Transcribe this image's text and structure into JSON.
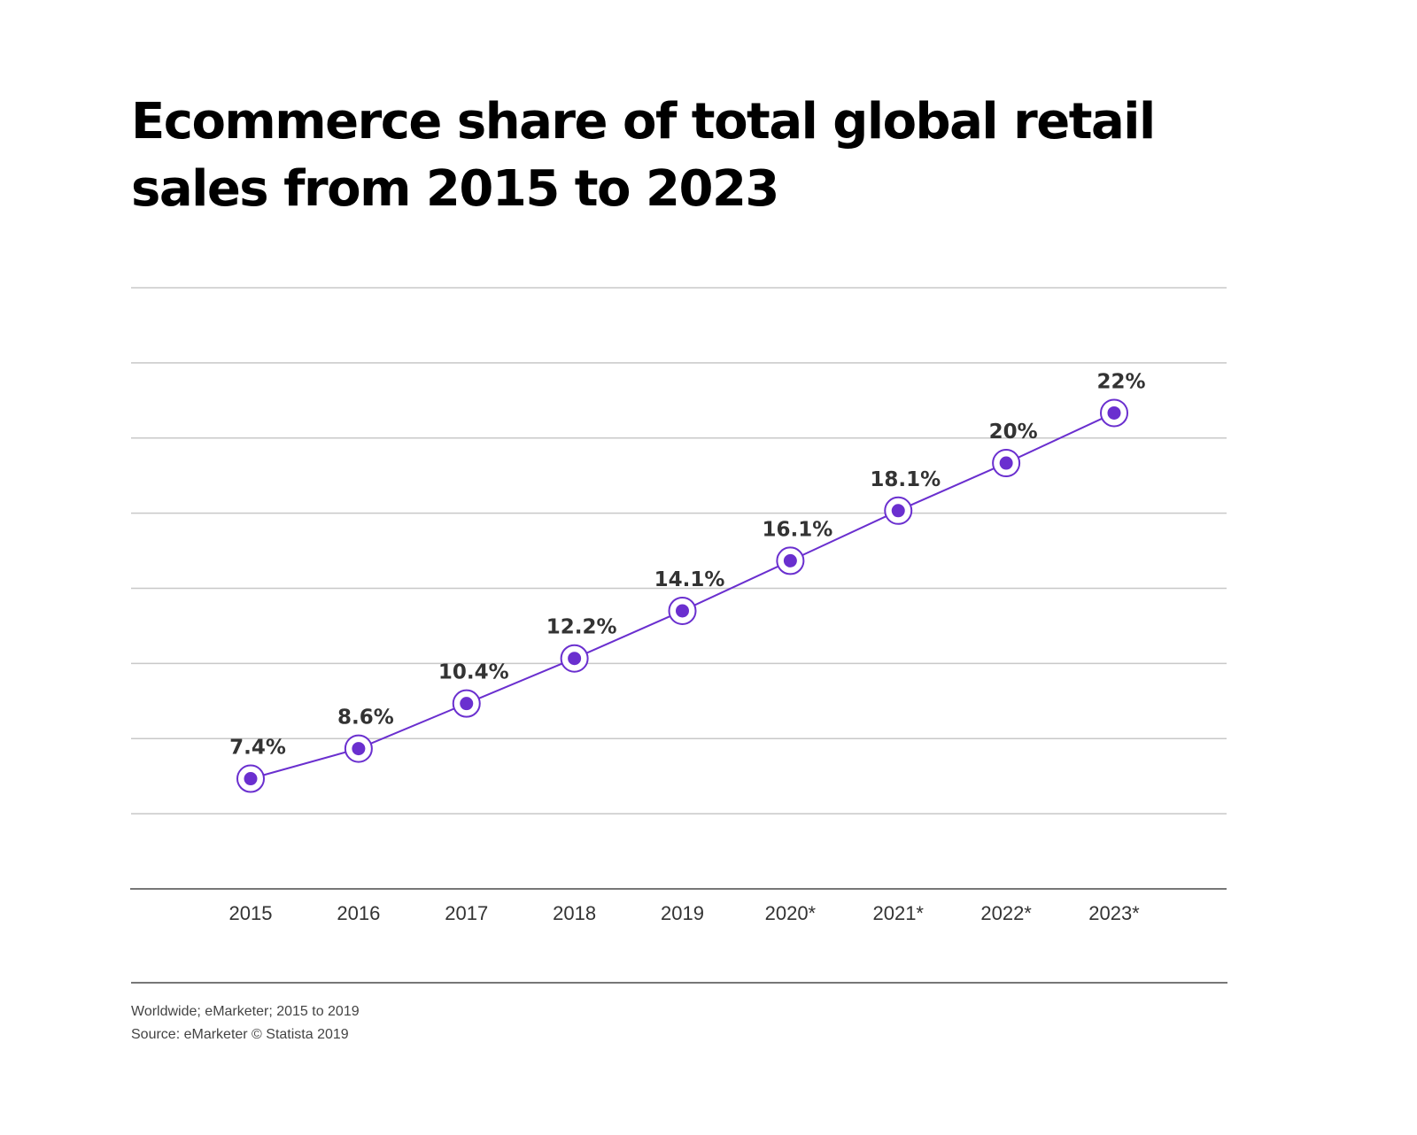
{
  "chart_data": {
    "type": "line",
    "title": "Ecommerce share of total global retail sales from 2015 to 2023",
    "categories": [
      "2015",
      "2016",
      "2017",
      "2018",
      "2019",
      "2020*",
      "2021*",
      "2022*",
      "2023*"
    ],
    "values": [
      7.4,
      8.6,
      10.4,
      12.2,
      14.1,
      16.1,
      18.1,
      20,
      22
    ],
    "data_labels": [
      "7.4%",
      "8.6%",
      "10.4%",
      "12.2%",
      "14.1%",
      "16.1%",
      "18.1%",
      "20%",
      "22%"
    ],
    "xlabel": "",
    "ylabel": "",
    "ylim": [
      3,
      27
    ],
    "grid": true,
    "y_tick_labels_shown": false,
    "legend": "none"
  },
  "footnotes": {
    "note": "Worldwide; eMarketer; 2015 to 2019",
    "source": "Source: eMarketer © Statista 2019"
  },
  "colors": {
    "line": "#6a2fcf",
    "marker_fill": "#6a2fcf",
    "marker_ring": "#6a2fcf",
    "grid": "#c8c8c8",
    "baseline": "#777777",
    "data_label": "#333333",
    "tick_label": "#333333",
    "title": "#000000"
  }
}
